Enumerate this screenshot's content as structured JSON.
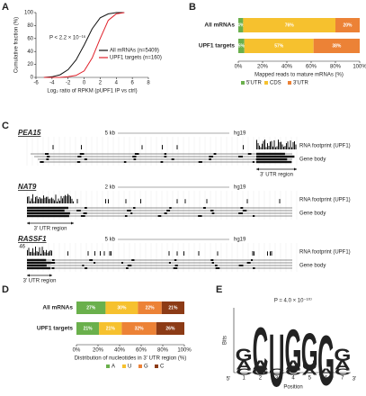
{
  "panel_letters": [
    "A",
    "B",
    "C",
    "D",
    "E"
  ],
  "chart_data": [
    {
      "type": "line",
      "ylabel": "Cumulative fraction (%)",
      "xlabel": "Log₂ ratio of RPKM (pUPF1 IP vs ctrl)",
      "annotation": "P < 2.2 × 10⁻¹⁶",
      "x": [
        -5,
        -4,
        -3,
        -2,
        -1,
        0,
        1,
        2,
        3,
        4,
        5
      ],
      "series": [
        {
          "name": "All mRNAs (n=5409)",
          "color": "#111111",
          "values": [
            0,
            1,
            4,
            12,
            27,
            50,
            75,
            92,
            98,
            100,
            100
          ]
        },
        {
          "name": "UPF1 targets (n=160)",
          "color": "#e0202a",
          "values": [
            0,
            0,
            0,
            1,
            3,
            10,
            30,
            60,
            88,
            98,
            100
          ]
        }
      ],
      "xlim": [
        -6,
        8
      ],
      "xticks": [
        -6,
        -4,
        -2,
        0,
        2,
        4,
        6,
        8
      ],
      "ylim": [
        0,
        100
      ],
      "yticks": [
        0,
        20,
        40,
        60,
        80,
        100
      ],
      "legend": "lower right"
    },
    {
      "type": "stacked-barh",
      "xlabel": "Mapped reads to mature mRNAs (%)",
      "categories": [
        "All mRNAs",
        "UPF1 targets"
      ],
      "series": [
        {
          "name": "5'UTR",
          "color": "#6ab04c",
          "values": [
            4,
            5
          ],
          "value_labels": [
            "4%",
            "5%"
          ]
        },
        {
          "name": "CDS",
          "color": "#f6c12e",
          "values": [
            76,
            57
          ],
          "value_labels": [
            "76%",
            "57%"
          ]
        },
        {
          "name": "3'UTR",
          "color": "#ec8236",
          "values": [
            20,
            38
          ],
          "value_labels": [
            "20%",
            "38%"
          ]
        }
      ],
      "xlim": [
        0,
        100
      ],
      "xticks": [
        {
          "value": 0,
          "label": "0%"
        },
        {
          "value": 20,
          "label": "20%"
        },
        {
          "value": 40,
          "label": "40%"
        },
        {
          "value": 60,
          "label": "60%"
        },
        {
          "value": 80,
          "label": "80%"
        },
        {
          "value": 100,
          "label": "100%"
        }
      ]
    },
    {
      "type": "stacked-barh",
      "xlabel": "Distribution of nucleotides in 3' UTR region (%)",
      "categories": [
        "All mRNAs",
        "UPF1 targets"
      ],
      "series": [
        {
          "name": "A",
          "color": "#6ab04c",
          "values": [
            27,
            21
          ],
          "value_labels": [
            "27%",
            "21%"
          ]
        },
        {
          "name": "U",
          "color": "#f6c12e",
          "values": [
            30,
            21
          ],
          "value_labels": [
            "30%",
            "21%"
          ]
        },
        {
          "name": "G",
          "color": "#ec8236",
          "values": [
            22,
            32
          ],
          "value_labels": [
            "22%",
            "32%"
          ]
        },
        {
          "name": "C",
          "color": "#8c3b16",
          "values": [
            21,
            26
          ],
          "value_labels": [
            "21%",
            "26%"
          ]
        }
      ],
      "xlim": [
        0,
        100
      ],
      "xticks": [
        {
          "value": 0,
          "label": "0%"
        },
        {
          "value": 20,
          "label": "20%"
        },
        {
          "value": 40,
          "label": "40%"
        },
        {
          "value": 60,
          "label": "60%"
        },
        {
          "value": 80,
          "label": "80%"
        },
        {
          "value": 100,
          "label": "100%"
        }
      ]
    },
    {
      "type": "logo",
      "annotation": "P = 4.0 × 10⁻¹⁰⁷",
      "ylabel": "Bits",
      "xlabel": "Position",
      "end_labels": [
        "5'",
        "3'"
      ],
      "categories": [
        "1",
        "2",
        "3",
        "4",
        "5",
        "6",
        "7"
      ],
      "colors": {
        "A": "#3aa23a",
        "C": "#1f5fbf",
        "G": "#f2a22a",
        "U": "#d7262b"
      },
      "columns": [
        [
          {
            "letter": "C",
            "height": 0.2
          },
          {
            "letter": "A",
            "height": 0.3
          },
          {
            "letter": "G",
            "height": 0.4
          }
        ],
        [
          {
            "letter": "G",
            "height": 0.2
          },
          {
            "letter": "A",
            "height": 0.3
          },
          {
            "letter": "C",
            "height": 1.5
          }
        ],
        [
          {
            "letter": "C",
            "height": 0.2
          },
          {
            "letter": "U",
            "height": 1.7
          }
        ],
        [
          {
            "letter": "C",
            "height": 0.2
          },
          {
            "letter": "A",
            "height": 0.3
          },
          {
            "letter": "G",
            "height": 1.4
          }
        ],
        [
          {
            "letter": "A",
            "height": 0.2
          },
          {
            "letter": "U",
            "height": 0.3
          },
          {
            "letter": "G",
            "height": 1.2
          }
        ],
        [
          {
            "letter": "A",
            "height": 0.2
          },
          {
            "letter": "G",
            "height": 1.6
          }
        ],
        [
          {
            "letter": "C",
            "height": 0.2
          },
          {
            "letter": "A",
            "height": 0.3
          },
          {
            "letter": "G",
            "height": 0.4
          }
        ]
      ],
      "ylim": [
        0,
        2
      ]
    }
  ],
  "browser": {
    "footprint_track": "RNA footprint (UPF1)",
    "gene_track": "Gene body",
    "utr_label": "3' UTR region",
    "genes": [
      {
        "name": "PEA15",
        "scale": "5 kb",
        "assembly": "hg19"
      },
      {
        "name": "NAT9",
        "scale": "2 kb",
        "assembly": "hg19"
      },
      {
        "name": "RASSF1",
        "scale": "5 kb",
        "assembly": "hg19",
        "ymax": 46
      }
    ]
  }
}
